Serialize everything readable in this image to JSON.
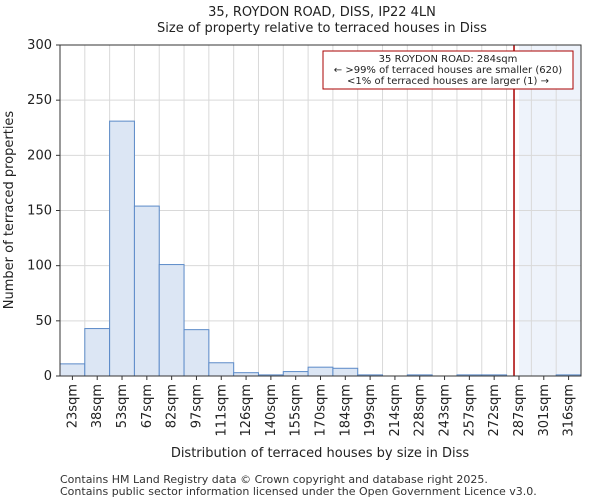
{
  "chart_data": {
    "type": "bar",
    "title": "35, ROYDON ROAD, DISS, IP22 4LN",
    "subtitle": "Size of property relative to terraced houses in Diss",
    "xlabel": "Distribution of terraced houses by size in Diss",
    "ylabel": "Number of terraced properties",
    "ylim": [
      0,
      300
    ],
    "yticks": [
      0,
      50,
      100,
      150,
      200,
      250,
      300
    ],
    "categories": [
      "23sqm",
      "38sqm",
      "53sqm",
      "67sqm",
      "82sqm",
      "97sqm",
      "111sqm",
      "126sqm",
      "140sqm",
      "155sqm",
      "170sqm",
      "184sqm",
      "199sqm",
      "214sqm",
      "228sqm",
      "243sqm",
      "257sqm",
      "272sqm",
      "287sqm",
      "301sqm",
      "316sqm"
    ],
    "values": [
      11,
      43,
      231,
      154,
      101,
      42,
      12,
      3,
      1,
      4,
      8,
      7,
      1,
      0,
      1,
      0,
      1,
      1,
      0,
      0,
      1
    ],
    "bar_color": "#dce6f4",
    "bar_edge_color": "#5b8ac8",
    "property": {
      "size_sqm": 284,
      "line_color": "#aa0000",
      "shade_color": "#eef3fb"
    },
    "annotation": {
      "line1": "35 ROYDON ROAD: 284sqm",
      "line2": "← >99% of terraced houses are smaller (620)",
      "line3": "<1% of terraced houses are larger (1) →"
    }
  },
  "footer": {
    "line1": "Contains HM Land Registry data © Crown copyright and database right 2025.",
    "line2": "Contains public sector information licensed under the Open Government Licence v3.0."
  }
}
